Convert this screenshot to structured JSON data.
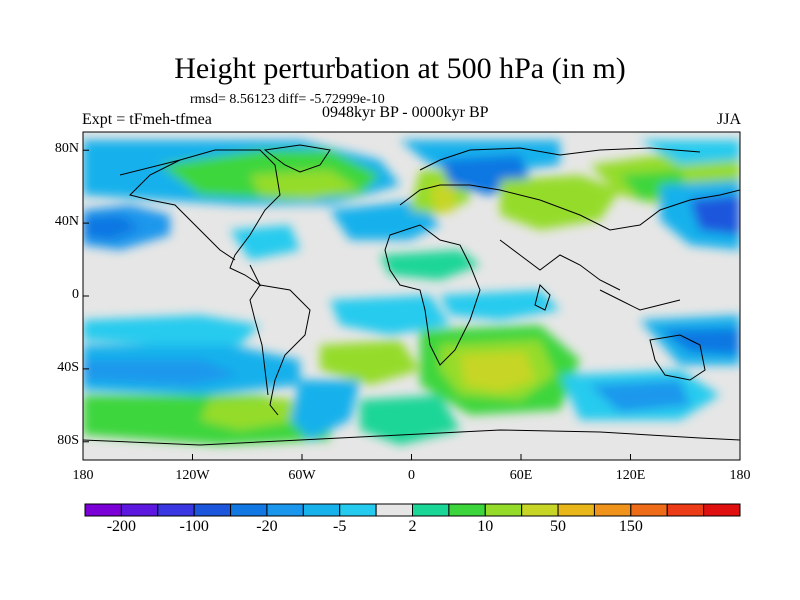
{
  "title": "Height perturbation at 500 hPa (in m)",
  "stats": "rmsd= 8.56123 diff= -5.72999e-10",
  "experiment": "Expt = tFmeh-tfmea",
  "period": "0948kyr BP - 0000kyr BP",
  "season": "JJA",
  "lat_ticks": [
    {
      "label": "80N",
      "value": 80
    },
    {
      "label": "40N",
      "value": 40
    },
    {
      "label": "0",
      "value": 0
    },
    {
      "label": "40S",
      "value": -40
    },
    {
      "label": "80S",
      "value": -80
    }
  ],
  "lon_ticks": [
    {
      "label": "180",
      "value": -180
    },
    {
      "label": "120W",
      "value": -120
    },
    {
      "label": "60W",
      "value": -60
    },
    {
      "label": "0",
      "value": 0
    },
    {
      "label": "60E",
      "value": 60
    },
    {
      "label": "120E",
      "value": 120
    },
    {
      "label": "180",
      "value": 180
    }
  ],
  "colorbar": {
    "colors": [
      "#7b00d8",
      "#5d18e0",
      "#3a36e2",
      "#1b56dd",
      "#1177e2",
      "#1a97ec",
      "#17b1ec",
      "#25cbee",
      "#e6e6e6",
      "#1ad697",
      "#3cd63c",
      "#95dc2a",
      "#c7d626",
      "#e9b619",
      "#f0931a",
      "#ee6b18",
      "#eb3b17",
      "#e01010"
    ],
    "labels": [
      {
        "text": "-200",
        "boundary": 1
      },
      {
        "text": "-100",
        "boundary": 3
      },
      {
        "text": "-20",
        "boundary": 5
      },
      {
        "text": "-5",
        "boundary": 7
      },
      {
        "text": "2",
        "boundary": 9
      },
      {
        "text": "10",
        "boundary": 11
      },
      {
        "text": "50",
        "boundary": 13
      },
      {
        "text": "150",
        "boundary": 15
      }
    ]
  }
}
